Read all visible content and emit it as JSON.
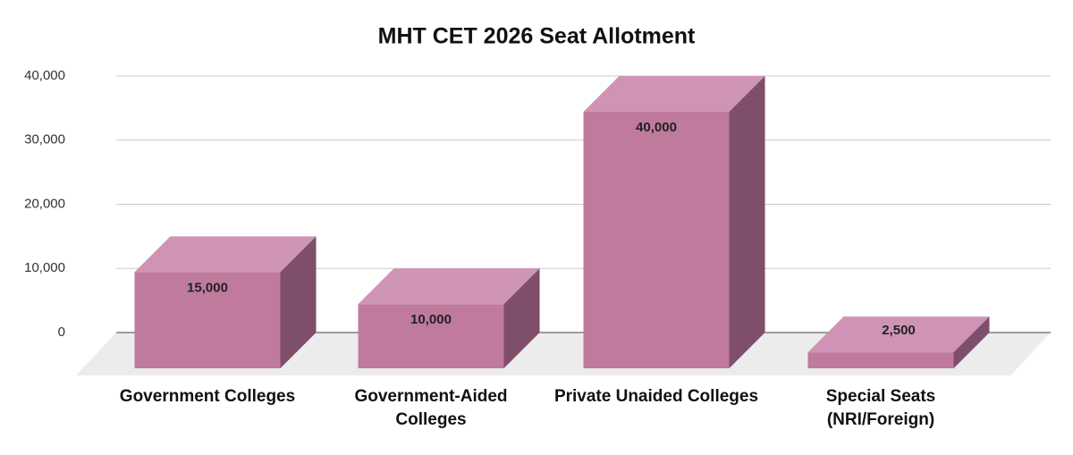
{
  "chart_data": {
    "type": "bar3d",
    "title": "MHT CET 2026 Seat Allotment",
    "categories": [
      "Government Colleges",
      "Government-Aided Colleges",
      "Private Unaided Colleges",
      "Special Seats (NRI/Foreign)"
    ],
    "values": [
      15000,
      10000,
      40000,
      2500
    ],
    "value_labels": [
      "15,000",
      "10,000",
      "40,000",
      "2,500"
    ],
    "color": "#c07a9e",
    "ylim": [
      0,
      40000
    ],
    "yticks": [
      0,
      {
        "value": 10000,
        "label": "10,000"
      },
      {
        "value": 20000,
        "label": "20,000"
      },
      {
        "value": 30000,
        "label": "30,000"
      },
      {
        "value": 40000,
        "label": "40,000"
      }
    ],
    "grid": true
  }
}
